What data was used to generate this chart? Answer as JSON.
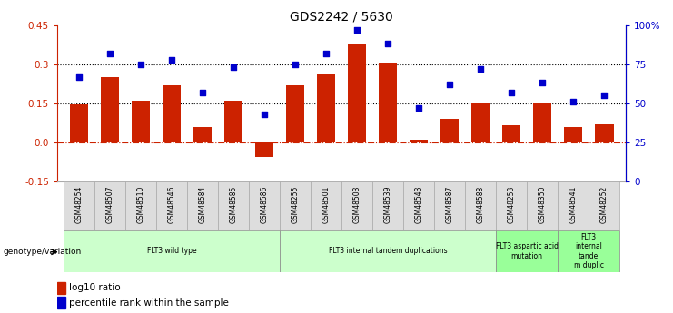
{
  "title": "GDS2242 / 5630",
  "samples": [
    "GSM48254",
    "GSM48507",
    "GSM48510",
    "GSM48546",
    "GSM48584",
    "GSM48585",
    "GSM48586",
    "GSM48255",
    "GSM48501",
    "GSM48503",
    "GSM48539",
    "GSM48543",
    "GSM48587",
    "GSM48588",
    "GSM48253",
    "GSM48350",
    "GSM48541",
    "GSM48252"
  ],
  "log10_ratio": [
    0.145,
    0.25,
    0.16,
    0.22,
    0.06,
    0.16,
    -0.055,
    0.22,
    0.26,
    0.38,
    0.305,
    0.01,
    0.09,
    0.15,
    0.065,
    0.15,
    0.06,
    0.07
  ],
  "percentile_rank": [
    67,
    82,
    75,
    78,
    57,
    73,
    43,
    75,
    82,
    97,
    88,
    47,
    62,
    72,
    57,
    63,
    51,
    55
  ],
  "ylim_left": [
    -0.15,
    0.45
  ],
  "ylim_right": [
    0,
    100
  ],
  "yticks_left": [
    -0.15,
    0.0,
    0.15,
    0.3,
    0.45
  ],
  "yticks_right": [
    0,
    25,
    50,
    75,
    100
  ],
  "ytick_labels_right": [
    "0",
    "25",
    "50",
    "75",
    "100%"
  ],
  "hlines": [
    0.0,
    0.15,
    0.3
  ],
  "hline_styles": [
    "dashdot",
    "dotted",
    "dotted"
  ],
  "hline_colors": [
    "#cc2200",
    "#000000",
    "#000000"
  ],
  "bar_color": "#cc2200",
  "square_color": "#0000cc",
  "groups": [
    {
      "label": "FLT3 wild type",
      "start": 0,
      "end": 6,
      "color": "#ccffcc"
    },
    {
      "label": "FLT3 internal tandem duplications",
      "start": 7,
      "end": 13,
      "color": "#ccffcc"
    },
    {
      "label": "FLT3 aspartic acid\nmutation",
      "start": 14,
      "end": 15,
      "color": "#99ff99"
    },
    {
      "label": "FLT3\ninternal\ntande\nm duplic",
      "start": 16,
      "end": 17,
      "color": "#99ff99"
    }
  ],
  "legend_label_bar": "log10 ratio",
  "legend_label_pct": "percentile rank within the sample",
  "genotype_label": "genotype/variation",
  "bar_width": 0.6,
  "title_fontsize": 10,
  "axis_fontsize": 7.5,
  "label_fontsize": 6.5
}
